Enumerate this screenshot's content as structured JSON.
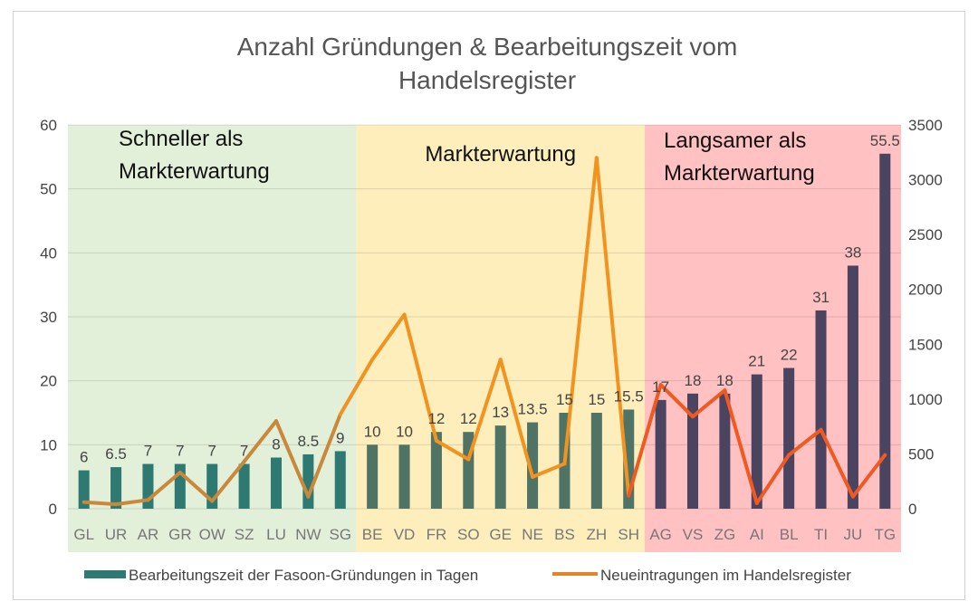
{
  "chart_data": {
    "type": "bar",
    "title_lines": [
      "Anzahl Gründungen & Bearbeitungszeit vom",
      "Handelsregister"
    ],
    "categories": [
      "GL",
      "UR",
      "AR",
      "GR",
      "OW",
      "SZ",
      "LU",
      "NW",
      "SG",
      "BE",
      "VD",
      "FR",
      "SO",
      "GE",
      "NE",
      "BS",
      "ZH",
      "SH",
      "AG",
      "VS",
      "ZG",
      "AI",
      "BL",
      "TI",
      "JU",
      "TG"
    ],
    "series": [
      {
        "name": "Bearbeitungszeit der Fasoon-Gründungen in Tagen",
        "type": "bar",
        "axis": "left",
        "values": [
          6,
          6.5,
          7,
          7,
          7,
          7,
          8,
          8.5,
          9,
          10,
          10,
          12,
          12,
          13,
          13.5,
          15,
          15,
          15.5,
          17,
          18,
          18,
          21,
          22,
          31,
          38,
          55.5
        ],
        "data_labels": [
          "6",
          "6.5",
          "7",
          "7",
          "7",
          "7",
          "8",
          "8.5",
          "9",
          "10",
          "10",
          "12",
          "12",
          "13",
          "13.5",
          "15",
          "15",
          "15.5",
          "17",
          "18",
          "18",
          "21",
          "22",
          "31",
          "38",
          "55.5"
        ],
        "color": "#2e7a72"
      },
      {
        "name": "Neueintragungen im Handelsregister",
        "type": "line",
        "axis": "right",
        "values": [
          60,
          40,
          80,
          330,
          70,
          430,
          800,
          110,
          860,
          1360,
          1770,
          620,
          450,
          1360,
          290,
          410,
          3200,
          120,
          1130,
          840,
          1080,
          50,
          490,
          720,
          110,
          490
        ],
        "color": "#e8822a"
      }
    ],
    "zones": [
      {
        "label_lines": [
          "Schneller als",
          "Markterwartung"
        ],
        "from": "GL",
        "to": "SG",
        "color": "#e2efd9"
      },
      {
        "label_lines": [
          "Markterwartung"
        ],
        "from": "BE",
        "to": "SH",
        "color": "#fdeebc"
      },
      {
        "label_lines": [
          "Langsamer als",
          "Markterwartung"
        ],
        "from": "AG",
        "to": "TG",
        "color": "#ffc1c1"
      }
    ],
    "y_left": {
      "min": 0,
      "max": 60,
      "ticks": [
        "0",
        "10",
        "20",
        "30",
        "40",
        "50",
        "60"
      ]
    },
    "y_right": {
      "min": 0,
      "max": 3500,
      "ticks": [
        "0",
        "500",
        "1000",
        "1500",
        "2000",
        "2500",
        "3000",
        "3500"
      ]
    },
    "grid": true,
    "legend_position": "bottom",
    "bar_colors": {
      "green_zone": "#2e7a72",
      "yellow_zone": "#4f7364",
      "red_zone": "#4a4460"
    },
    "line_colors": {
      "green_zone": "#c9883a",
      "yellow_zone": "#f2921f",
      "red_zone": "#f05a22"
    }
  }
}
